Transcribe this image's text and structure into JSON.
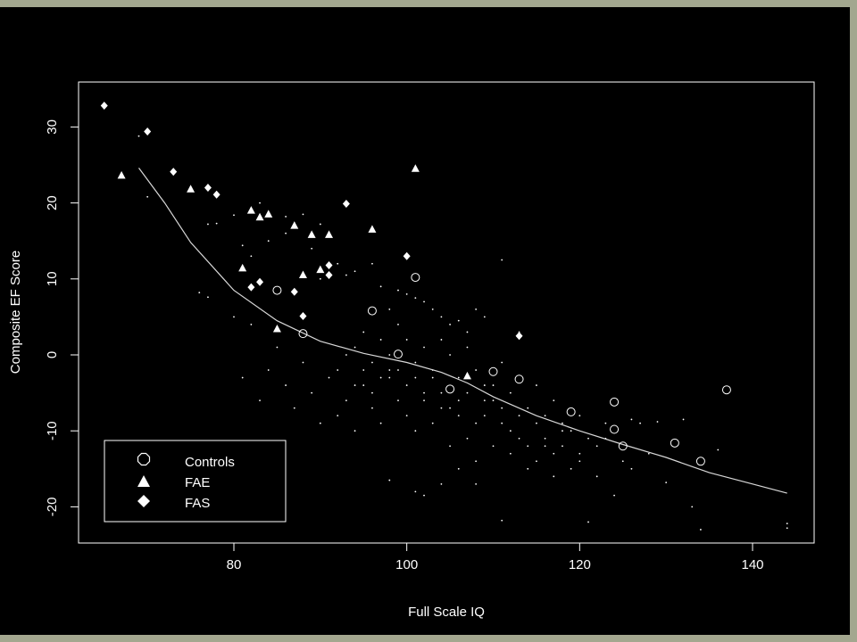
{
  "colors": {
    "outer_border": "#a3a78f",
    "background": "#000000",
    "foreground": "#ffffff",
    "trend_line": "#d8d8d8"
  },
  "chart_data": {
    "type": "scatter",
    "title": "",
    "xlabel": "Full Scale IQ",
    "ylabel": "Composite EF Score",
    "xlim": [
      62,
      147
    ],
    "ylim": [
      -26,
      35
    ],
    "x_ticks": [
      80,
      100,
      120,
      140
    ],
    "y_ticks": [
      -20,
      -10,
      0,
      10,
      20,
      30
    ],
    "grid": false,
    "legend_position": "bottom-left",
    "legend": [
      {
        "label": "Controls",
        "marker": "circle"
      },
      {
        "label": "FAE",
        "marker": "triangle"
      },
      {
        "label": "FAS",
        "marker": "diamond"
      }
    ],
    "series": [
      {
        "name": "Controls",
        "marker": "circle",
        "points": [
          [
            85,
            8.5
          ],
          [
            88,
            2.8
          ],
          [
            96,
            5.8
          ],
          [
            99,
            0.1
          ],
          [
            101,
            10.2
          ],
          [
            105,
            -4.5
          ],
          [
            110,
            -2.2
          ],
          [
            113,
            -3.2
          ],
          [
            119,
            -7.5
          ],
          [
            124,
            -6.2
          ],
          [
            124,
            -9.8
          ],
          [
            125,
            -12
          ],
          [
            131,
            -11.6
          ],
          [
            134,
            -14
          ],
          [
            137,
            -4.6
          ]
        ]
      },
      {
        "name": "FAE",
        "marker": "triangle",
        "points": [
          [
            67,
            23.6
          ],
          [
            75,
            21.8
          ],
          [
            81,
            11.4
          ],
          [
            82,
            19
          ],
          [
            83,
            18.1
          ],
          [
            84,
            18.5
          ],
          [
            85,
            3.4
          ],
          [
            87,
            17
          ],
          [
            88,
            10.5
          ],
          [
            89,
            15.8
          ],
          [
            90,
            11.2
          ],
          [
            91,
            15.8
          ],
          [
            96,
            16.5
          ],
          [
            101,
            24.5
          ],
          [
            107,
            -2.8
          ]
        ]
      },
      {
        "name": "FAS",
        "marker": "diamond",
        "points": [
          [
            65,
            32.8
          ],
          [
            70,
            29.4
          ],
          [
            73,
            24.1
          ],
          [
            77,
            22
          ],
          [
            78,
            21.1
          ],
          [
            82,
            8.9
          ],
          [
            83,
            9.6
          ],
          [
            87,
            8.3
          ],
          [
            88,
            5.1
          ],
          [
            91,
            11.8
          ],
          [
            91,
            10.5
          ],
          [
            93,
            19.9
          ],
          [
            100,
            13
          ],
          [
            113,
            2.5
          ]
        ]
      }
    ],
    "background_points": [
      [
        69,
        28.8
      ],
      [
        70,
        20.8
      ],
      [
        76,
        8.2
      ],
      [
        77,
        7.6
      ],
      [
        77,
        17.2
      ],
      [
        78,
        17.3
      ],
      [
        80,
        18.4
      ],
      [
        81,
        14.4
      ],
      [
        82,
        13
      ],
      [
        83,
        20
      ],
      [
        84,
        15
      ],
      [
        86,
        18.2
      ],
      [
        86,
        16
      ],
      [
        88,
        18.5
      ],
      [
        89,
        14
      ],
      [
        90,
        17.2
      ],
      [
        90,
        10
      ],
      [
        92,
        12
      ],
      [
        93,
        10.5
      ],
      [
        94,
        11
      ],
      [
        96,
        12
      ],
      [
        97,
        9
      ],
      [
        98,
        6
      ],
      [
        99,
        8.5
      ],
      [
        100,
        8
      ],
      [
        101,
        7.5
      ],
      [
        102,
        7
      ],
      [
        103,
        6
      ],
      [
        104,
        5
      ],
      [
        105,
        4
      ],
      [
        106,
        4.5
      ],
      [
        107,
        3
      ],
      [
        108,
        6
      ],
      [
        109,
        5
      ],
      [
        111,
        12.5
      ],
      [
        113,
        3
      ],
      [
        80,
        5
      ],
      [
        81,
        -3
      ],
      [
        82,
        4
      ],
      [
        83,
        -6
      ],
      [
        84,
        -2
      ],
      [
        85,
        1
      ],
      [
        86,
        -4
      ],
      [
        87,
        -7
      ],
      [
        88,
        -1
      ],
      [
        89,
        -5
      ],
      [
        90,
        -9
      ],
      [
        91,
        -3
      ],
      [
        92,
        -8
      ],
      [
        93,
        -6
      ],
      [
        94,
        -10
      ],
      [
        95,
        -4
      ],
      [
        96,
        -7
      ],
      [
        97,
        -9
      ],
      [
        98,
        -3
      ],
      [
        99,
        -6
      ],
      [
        100,
        -8
      ],
      [
        101,
        -10
      ],
      [
        102,
        -5
      ],
      [
        103,
        -9
      ],
      [
        104,
        -7
      ],
      [
        105,
        -12
      ],
      [
        106,
        -8
      ],
      [
        107,
        -11
      ],
      [
        108,
        -14
      ],
      [
        109,
        -6
      ],
      [
        110,
        -12
      ],
      [
        111,
        -9
      ],
      [
        112,
        -13
      ],
      [
        113,
        -11
      ],
      [
        114,
        -15
      ],
      [
        115,
        -9
      ],
      [
        116,
        -12
      ],
      [
        117,
        -16
      ],
      [
        118,
        -10
      ],
      [
        120,
        -13
      ],
      [
        121,
        -22
      ],
      [
        123,
        -11
      ],
      [
        124,
        -18.5
      ],
      [
        126,
        -8.5
      ],
      [
        127,
        -9
      ],
      [
        129,
        -8.8
      ],
      [
        130,
        -16.8
      ],
      [
        132,
        -8.5
      ],
      [
        133,
        -20
      ],
      [
        134,
        -23
      ],
      [
        136,
        -12.5
      ],
      [
        144,
        -22.2
      ],
      [
        144,
        -22.8
      ],
      [
        98,
        -16.5
      ],
      [
        101,
        -18
      ],
      [
        102,
        -18.5
      ],
      [
        104,
        -17
      ],
      [
        106,
        -15
      ],
      [
        108,
        -17
      ],
      [
        111,
        -21.8
      ],
      [
        94,
        1
      ],
      [
        95,
        3
      ],
      [
        96,
        -1
      ],
      [
        97,
        2
      ],
      [
        98,
        -2
      ],
      [
        99,
        4
      ],
      [
        100,
        2
      ],
      [
        101,
        -1
      ],
      [
        102,
        1
      ],
      [
        103,
        -2
      ],
      [
        104,
        2
      ],
      [
        105,
        0
      ],
      [
        106,
        -3
      ],
      [
        107,
        1
      ],
      [
        108,
        -2
      ],
      [
        109,
        -4
      ],
      [
        110,
        -6
      ],
      [
        111,
        -1
      ],
      [
        112,
        -5
      ],
      [
        114,
        -7
      ],
      [
        115,
        -4
      ],
      [
        116,
        -8
      ],
      [
        117,
        -6
      ],
      [
        118,
        -9
      ],
      [
        119,
        -10
      ],
      [
        120,
        -8
      ],
      [
        121,
        -11
      ],
      [
        122,
        -12
      ],
      [
        123,
        -9
      ],
      [
        125,
        -14
      ],
      [
        126,
        -15
      ],
      [
        128,
        -13
      ],
      [
        92,
        -2
      ],
      [
        93,
        0
      ],
      [
        94,
        -4
      ],
      [
        95,
        -2
      ],
      [
        96,
        -5
      ],
      [
        97,
        -3
      ],
      [
        98,
        0
      ],
      [
        99,
        -2
      ],
      [
        100,
        -4
      ],
      [
        101,
        -3
      ],
      [
        102,
        -6
      ],
      [
        103,
        -3
      ],
      [
        104,
        -5
      ],
      [
        105,
        -7
      ],
      [
        106,
        -6
      ],
      [
        107,
        -5
      ],
      [
        108,
        -9
      ],
      [
        109,
        -8
      ],
      [
        110,
        -4
      ],
      [
        111,
        -7
      ],
      [
        112,
        -10
      ],
      [
        113,
        -8
      ],
      [
        114,
        -12
      ],
      [
        115,
        -14
      ],
      [
        116,
        -11
      ],
      [
        117,
        -13
      ],
      [
        118,
        -12
      ],
      [
        119,
        -15
      ],
      [
        120,
        -14
      ],
      [
        122,
        -16
      ]
    ],
    "trend_line": [
      [
        69,
        24.6
      ],
      [
        72,
        20
      ],
      [
        75,
        14.8
      ],
      [
        80,
        8.5
      ],
      [
        85,
        4.5
      ],
      [
        90,
        1.8
      ],
      [
        95,
        0.2
      ],
      [
        100,
        -1
      ],
      [
        104,
        -2.3
      ],
      [
        107,
        -3.7
      ],
      [
        110,
        -5.5
      ],
      [
        115,
        -8
      ],
      [
        120,
        -10
      ],
      [
        125,
        -11.8
      ],
      [
        130,
        -13.5
      ],
      [
        135,
        -15.5
      ],
      [
        140,
        -17
      ],
      [
        144,
        -18.2
      ]
    ]
  }
}
